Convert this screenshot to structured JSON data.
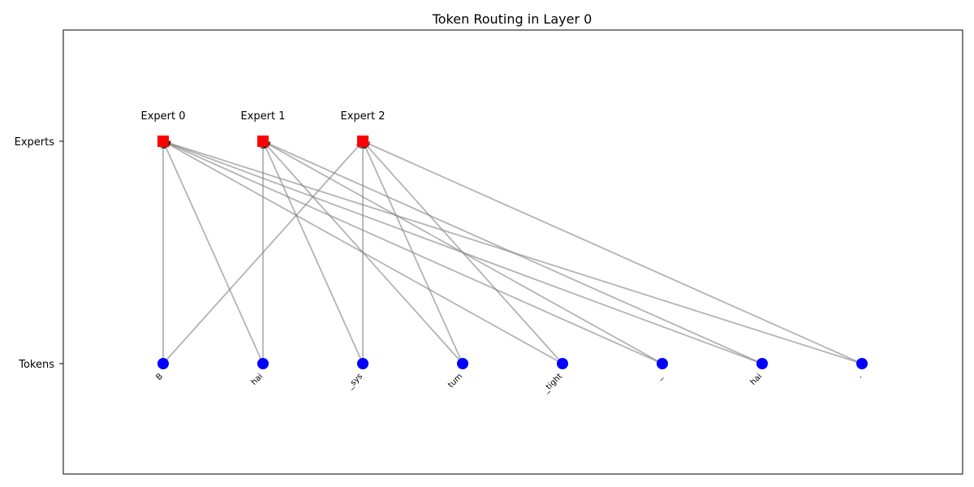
{
  "chart_data": {
    "type": "bipartite-graph",
    "title": "Token Routing in Layer 0",
    "y_tick_labels": [
      "Experts",
      "Tokens"
    ],
    "experts": [
      "Expert 0",
      "Expert 1",
      "Expert 2"
    ],
    "tokens": [
      "B",
      "hai",
      "_sys",
      "tum",
      "_tight",
      "_",
      "hai",
      "."
    ],
    "routes": [
      {
        "token": 0,
        "expert": 0
      },
      {
        "token": 0,
        "expert": 2
      },
      {
        "token": 1,
        "expert": 0
      },
      {
        "token": 1,
        "expert": 1
      },
      {
        "token": 2,
        "expert": 1
      },
      {
        "token": 2,
        "expert": 2
      },
      {
        "token": 3,
        "expert": 1
      },
      {
        "token": 3,
        "expert": 2
      },
      {
        "token": 4,
        "expert": 0
      },
      {
        "token": 4,
        "expert": 2
      },
      {
        "token": 5,
        "expert": 0
      },
      {
        "token": 5,
        "expert": 1
      },
      {
        "token": 6,
        "expert": 0
      },
      {
        "token": 6,
        "expert": 1
      },
      {
        "token": 7,
        "expert": 0
      },
      {
        "token": 7,
        "expert": 2
      }
    ],
    "colors": {
      "expert": "#ff0000",
      "token": "#0000ff",
      "edge": "#808080",
      "axes": "#000000"
    }
  }
}
